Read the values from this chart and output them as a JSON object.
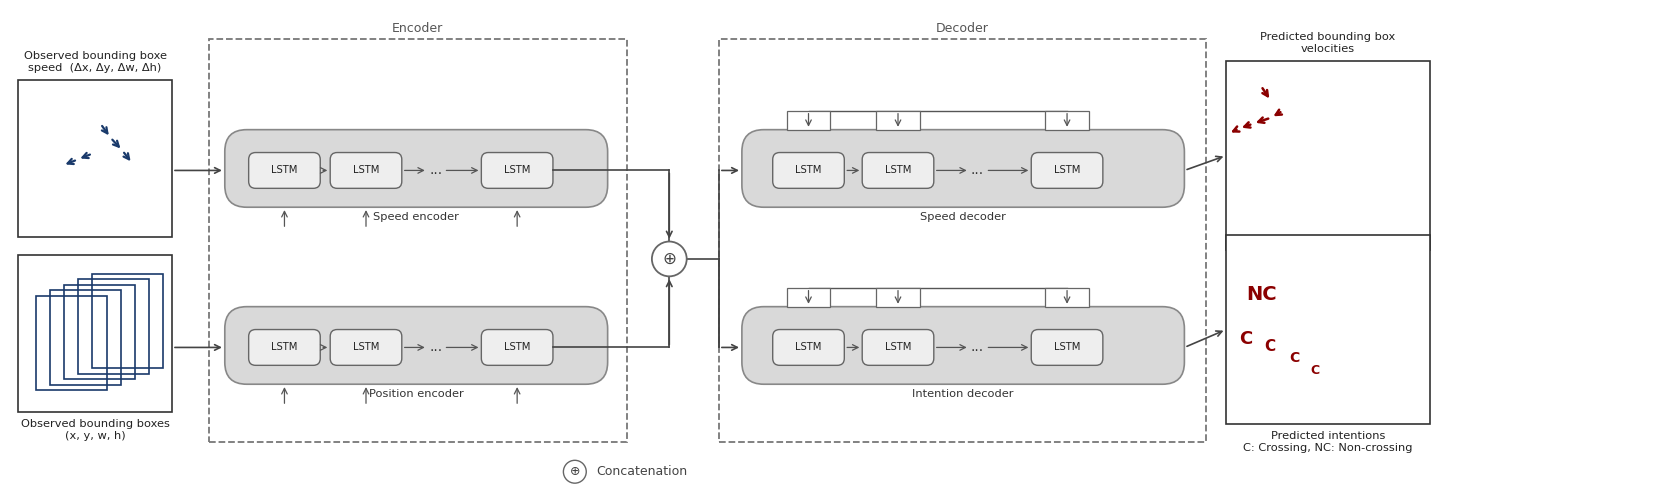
{
  "bg_color": "#ffffff",
  "box_color": "#d9d9d9",
  "box_edge_color": "#808080",
  "lstm_fill": "#eeeeee",
  "lstm_edge": "#666666",
  "dashed_edge_color": "#777777",
  "arrow_color": "#555555",
  "dark_arrow_color": "#444444",
  "blue_color": "#1a3a6b",
  "red_color": "#8b0000",
  "text_color": "#333333",
  "concat_symbol": "⊕",
  "concat_label": "Concatenation",
  "top_input_title": "Observed bounding boxe\nspeed  (Δx, Δy, Δw, Δh)",
  "bottom_input_title": "Observed bounding boxes\n(x, y, w, h)",
  "encoder_label": "Encoder",
  "decoder_label": "Decoder",
  "speed_encoder_label": "Speed encoder",
  "position_encoder_label": "Position encoder",
  "speed_decoder_label": "Speed decoder",
  "intention_decoder_label": "Intention decoder",
  "top_output_title": "Predicted bounding box\nvelocities",
  "bottom_output_title": "Predicted intentions\nC: Crossing, NC: Non-crossing",
  "lstm_text": "LSTM",
  "dots": "..."
}
